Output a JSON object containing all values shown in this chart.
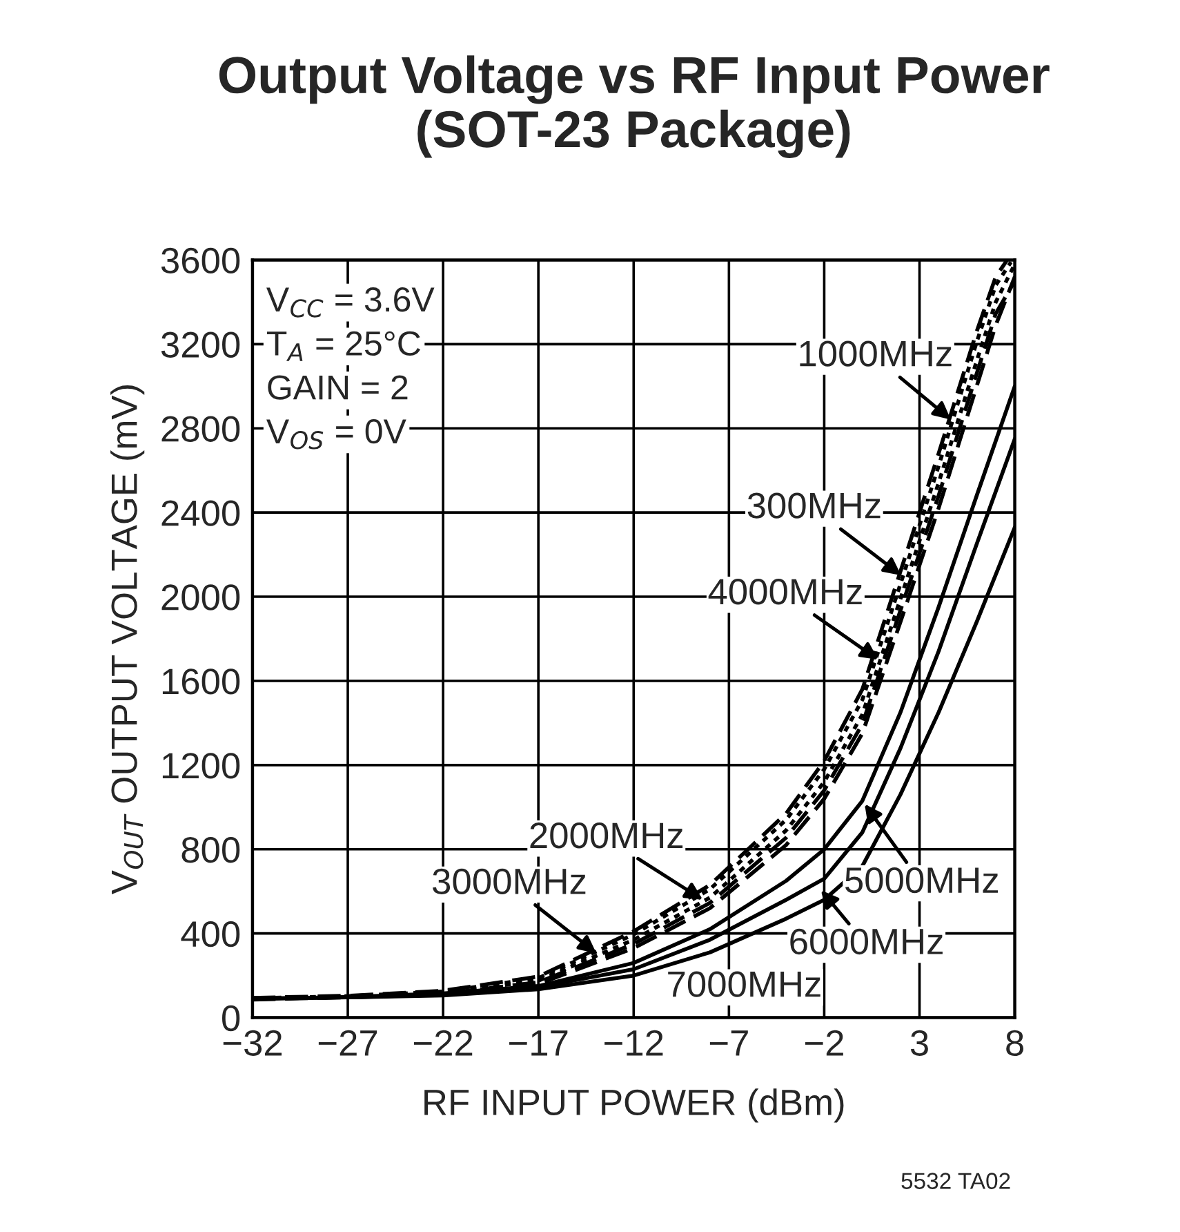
{
  "chart_data": {
    "type": "line",
    "title": "Output Voltage vs RF Input Power\n(SOT-23 Package)",
    "xlabel": "RF INPUT POWER (dBm)",
    "ylabel": "V$_{OUT}$ OUTPUT VOLTAGE (mV)",
    "xlim": [
      -32,
      8
    ],
    "ylim": [
      0,
      3600
    ],
    "xticks": [
      {
        "value": -32,
        "label": "−32"
      },
      {
        "value": -27,
        "label": "−27"
      },
      {
        "value": -22,
        "label": "−22"
      },
      {
        "value": -17,
        "label": "−17"
      },
      {
        "value": -12,
        "label": "−12"
      },
      {
        "value": -7,
        "label": "−7"
      },
      {
        "value": -2,
        "label": "−2"
      },
      3,
      8
    ],
    "yticks": [
      0,
      400,
      800,
      1200,
      1600,
      2000,
      2400,
      2800,
      3200,
      3600
    ],
    "grid": true,
    "series": [
      {
        "color": "#000000",
        "line_style": "dashed",
        "x": [
          -32,
          -27,
          -22,
          -17,
          -12,
          -8,
          -4,
          -2,
          0,
          2,
          4,
          6,
          7,
          7.6
        ],
        "values": [
          94,
          104,
          128,
          195,
          410,
          630,
          970,
          1220,
          1560,
          2120,
          2680,
          3260,
          3520,
          3600
        ]
      },
      {
        "color": "#000000",
        "line_style": "dotted",
        "x": [
          -32,
          -27,
          -22,
          -17,
          -12,
          -8,
          -4,
          -2,
          0,
          2,
          4,
          6,
          7,
          8
        ],
        "values": [
          90,
          100,
          118,
          175,
          370,
          570,
          890,
          1120,
          1440,
          1990,
          2540,
          3120,
          3400,
          3580
        ]
      },
      {
        "color": "#000000",
        "line_style": "dashed",
        "x": [
          -32,
          -27,
          -22,
          -17,
          -12,
          -8,
          -4,
          -2,
          0,
          2,
          4,
          6,
          7,
          8
        ],
        "values": [
          86,
          96,
          110,
          160,
          330,
          520,
          820,
          1040,
          1350,
          1880,
          2420,
          3000,
          3290,
          3520
        ]
      },
      {
        "color": "#000000",
        "line_style": "dotted",
        "x": [
          -32,
          -27,
          -22,
          -17,
          -12,
          -8,
          -4,
          -2,
          0,
          2,
          4,
          6,
          7,
          7.8
        ],
        "values": [
          92,
          102,
          124,
          188,
          395,
          610,
          940,
          1180,
          1510,
          2060,
          2620,
          3210,
          3480,
          3590
        ]
      },
      {
        "color": "#000000",
        "line_style": "dashed",
        "x": [
          -32,
          -27,
          -22,
          -17,
          -12,
          -8,
          -4,
          -2,
          0,
          2,
          4,
          6,
          7,
          8
        ],
        "values": [
          88,
          98,
          114,
          168,
          350,
          545,
          855,
          1080,
          1395,
          1935,
          2480,
          3060,
          3345,
          3500
        ]
      },
      {
        "color": "#000000",
        "line_style": "solid",
        "x": [
          -32,
          -27,
          -22,
          -17,
          -12,
          -8,
          -4,
          -2,
          0,
          2,
          4,
          6,
          8
        ],
        "values": [
          90,
          98,
          115,
          150,
          260,
          420,
          650,
          800,
          1030,
          1450,
          1950,
          2480,
          3000
        ]
      },
      {
        "color": "#000000",
        "line_style": "solid",
        "x": [
          -32,
          -27,
          -22,
          -17,
          -12,
          -8,
          -4,
          -2,
          0,
          2,
          4,
          6,
          8
        ],
        "values": [
          90,
          97,
          110,
          145,
          230,
          370,
          560,
          660,
          880,
          1280,
          1740,
          2250,
          2750
        ]
      },
      {
        "color": "#000000",
        "line_style": "solid",
        "x": [
          -32,
          -27,
          -22,
          -17,
          -12,
          -8,
          -4,
          -2,
          0,
          2,
          4,
          6,
          8
        ],
        "values": [
          90,
          96,
          105,
          135,
          200,
          310,
          470,
          560,
          720,
          1060,
          1450,
          1880,
          2330
        ]
      }
    ],
    "annotations": [
      "V$_{CC}$ = 3.6V",
      "T$_{A}$ = 25°C",
      "GAIN = 2",
      "V$_{OS}$ = 0V",
      {
        "text": "1000MHz",
        "x": 4.8,
        "y": 2830
      },
      {
        "text": "300MHz",
        "x": 2.2,
        "y": 2090
      },
      {
        "text": "4000MHz",
        "x": 1.0,
        "y": 1690
      },
      {
        "text": "2000MHz",
        "x": -8.2,
        "y": 550
      },
      {
        "text": "3000MHz",
        "x": -13.8,
        "y": 295
      },
      {
        "text": "5000MHz",
        "x": 0.0,
        "y": 1030
      },
      {
        "text": "6000MHz",
        "x": -2.3,
        "y": 620
      },
      "7000MHz",
      "5532 TA02"
    ]
  }
}
